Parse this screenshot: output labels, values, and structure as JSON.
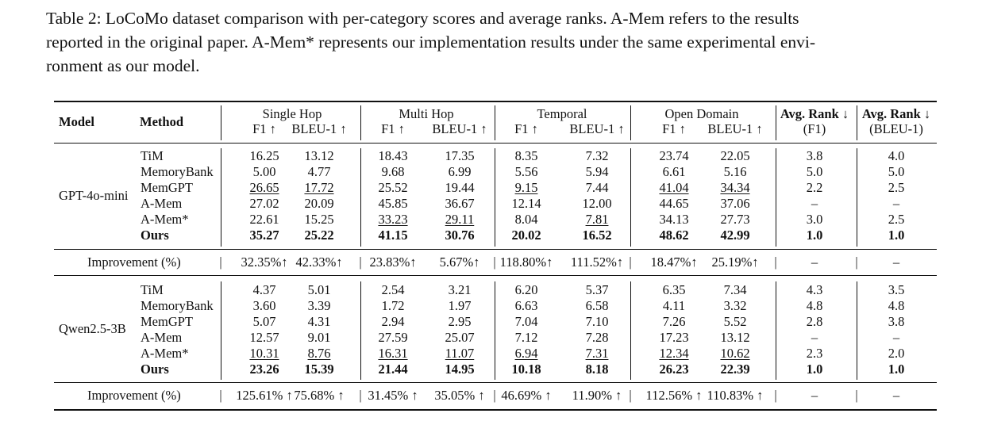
{
  "caption": {
    "lines": [
      "Table 2: LoCoMo dataset comparison with per-category scores and average ranks.  A-Mem refers to the results",
      "reported in the original paper.  A-Mem* represents our implementation results under the same experimental envi-",
      "ronment as our model."
    ]
  },
  "table": {
    "header": {
      "model": "Model",
      "method": "Method",
      "groups": [
        "Single Hop",
        "Multi Hop",
        "Temporal",
        "Open Domain"
      ],
      "metrics": [
        "F1 ↑",
        "BLEU-1 ↑",
        "F1 ↑",
        "BLEU-1 ↑",
        "F1 ↑",
        "BLEU-1 ↑",
        "F1 ↑",
        "BLEU-1 ↑"
      ],
      "rank1_top": "Avg. Rank ↓",
      "rank1_bottom": "(F1)",
      "rank2_top": "Avg. Rank ↓",
      "rank2_bottom": "(BLEU-1)"
    },
    "blocks": [
      {
        "model": "GPT-4o-mini",
        "rows": [
          {
            "method": "TiM",
            "values": [
              "16.25",
              "13.12",
              "18.43",
              "17.35",
              "8.35",
              "7.32",
              "23.74",
              "22.05",
              "3.8",
              "4.0"
            ],
            "underline": [],
            "bold": false
          },
          {
            "method": "MemoryBank",
            "values": [
              "5.00",
              "4.77",
              "9.68",
              "6.99",
              "5.56",
              "5.94",
              "6.61",
              "5.16",
              "5.0",
              "5.0"
            ],
            "underline": [],
            "bold": false
          },
          {
            "method": "MemGPT",
            "values": [
              "26.65",
              "17.72",
              "25.52",
              "19.44",
              "9.15",
              "7.44",
              "41.04",
              "34.34",
              "2.2",
              "2.5"
            ],
            "underline": [
              0,
              1,
              4,
              6,
              7
            ],
            "bold": false
          },
          {
            "method": "A-Mem",
            "values": [
              "27.02",
              "20.09",
              "45.85",
              "36.67",
              "12.14",
              "12.00",
              "44.65",
              "37.06",
              "–",
              "–"
            ],
            "underline": [],
            "bold": false
          },
          {
            "method": "A-Mem*",
            "values": [
              "22.61",
              "15.25",
              "33.23",
              "29.11",
              "8.04",
              "7.81",
              "34.13",
              "27.73",
              "3.0",
              "2.5"
            ],
            "underline": [
              2,
              3,
              5
            ],
            "bold": false
          },
          {
            "method": "Ours",
            "values": [
              "35.27",
              "25.22",
              "41.15",
              "30.76",
              "20.02",
              "16.52",
              "48.62",
              "42.99",
              "1.0",
              "1.0"
            ],
            "underline": [],
            "bold": true
          }
        ],
        "improvement": {
          "label": "Improvement (%)",
          "values": [
            "32.35%↑",
            "42.33%↑",
            "23.83%↑",
            "5.67%↑",
            "118.80%↑",
            "111.52%↑",
            "18.47%↑",
            "25.19%↑",
            "–",
            "–"
          ]
        }
      },
      {
        "model": "Qwen2.5-3B",
        "rows": [
          {
            "method": "TiM",
            "values": [
              "4.37",
              "5.01",
              "2.54",
              "3.21",
              "6.20",
              "5.37",
              "6.35",
              "7.34",
              "4.3",
              "3.5"
            ],
            "underline": [],
            "bold": false
          },
          {
            "method": "MemoryBank",
            "values": [
              "3.60",
              "3.39",
              "1.72",
              "1.97",
              "6.63",
              "6.58",
              "4.11",
              "3.32",
              "4.8",
              "4.8"
            ],
            "underline": [],
            "bold": false
          },
          {
            "method": "MemGPT",
            "values": [
              "5.07",
              "4.31",
              "2.94",
              "2.95",
              "7.04",
              "7.10",
              "7.26",
              "5.52",
              "2.8",
              "3.8"
            ],
            "underline": [],
            "bold": false
          },
          {
            "method": "A-Mem",
            "values": [
              "12.57",
              "9.01",
              "27.59",
              "25.07",
              "7.12",
              "7.28",
              "17.23",
              "13.12",
              "–",
              "–"
            ],
            "underline": [],
            "bold": false
          },
          {
            "method": "A-Mem*",
            "values": [
              "10.31",
              "8.76",
              "16.31",
              "11.07",
              "6.94",
              "7.31",
              "12.34",
              "10.62",
              "2.3",
              "2.0"
            ],
            "underline": [
              0,
              1,
              2,
              3,
              4,
              5,
              6,
              7
            ],
            "bold": false
          },
          {
            "method": "Ours",
            "values": [
              "23.26",
              "15.39",
              "21.44",
              "14.95",
              "10.18",
              "8.18",
              "26.23",
              "22.39",
              "1.0",
              "1.0"
            ],
            "underline": [],
            "bold": true
          }
        ],
        "improvement": {
          "label": "Improvement (%)",
          "values": [
            "125.61% ↑",
            "75.68% ↑",
            "31.45% ↑",
            "35.05% ↑",
            "46.69% ↑",
            "11.90% ↑",
            "112.56% ↑",
            "110.83% ↑",
            "–",
            "–"
          ]
        }
      }
    ]
  }
}
